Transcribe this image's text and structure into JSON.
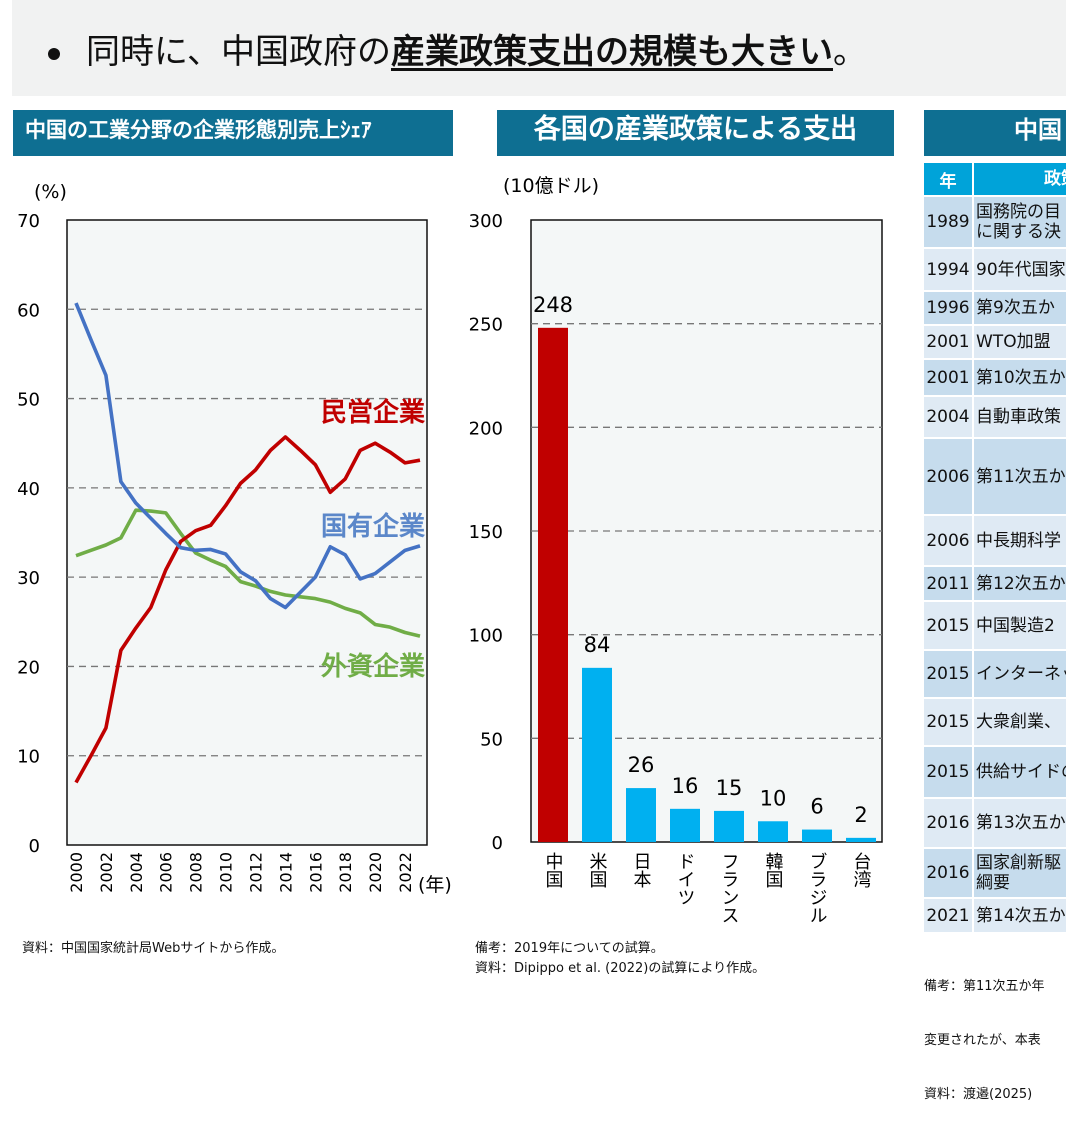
{
  "bullet": {
    "text_plain": "同時に、中国政府の",
    "text_bold": "産業政策支出の規模も大きい",
    "text_end": "。"
  },
  "colors": {
    "header_bg": "#0e6f92",
    "red": "#c00000",
    "blue": "#4472c4",
    "green": "#70ad47",
    "bar_other": "#00b0f0",
    "table_header": "#00a3d9",
    "row_dark": "#c6dced",
    "row_light": "#dfeaf4"
  },
  "panel1": {
    "title": "中国の工業分野の企業形態別売上ｼｪｱ",
    "note": "資料：中国国家統計局Webサイトから作成。"
  },
  "panel2": {
    "title": "各国の産業政策による支出",
    "note1": "備考：2019年についての試算。",
    "note2": "資料：Dipippo et al. (2022)の試算により作成。"
  },
  "panel3": {
    "title": "中国",
    "header": {
      "year": "年",
      "policy": "政策"
    },
    "rows": [
      {
        "year": "1989",
        "policy": "国務院の目\nに関する決"
      },
      {
        "year": "1994",
        "policy": "90年代国家"
      },
      {
        "year": "1996",
        "policy": "第9次五か"
      },
      {
        "year": "2001",
        "policy": "WTO加盟"
      },
      {
        "year": "2001",
        "policy": "第10次五か"
      },
      {
        "year": "2004",
        "policy": "自動車政策"
      },
      {
        "year": "2006",
        "policy": "第11次五か"
      },
      {
        "year": "2006",
        "policy": "中長期科学"
      },
      {
        "year": "2011",
        "policy": "第12次五か"
      },
      {
        "year": "2015",
        "policy": "中国製造2"
      },
      {
        "year": "2015",
        "policy": "インターネッ"
      },
      {
        "year": "2015",
        "policy": "大衆創業、"
      },
      {
        "year": "2015",
        "policy": "供給サイドの"
      },
      {
        "year": "2016",
        "policy": "第13次五か"
      },
      {
        "year": "2016",
        "policy": "国家創新駆\n綱要"
      },
      {
        "year": "2021",
        "policy": "第14次五か"
      }
    ],
    "notes": [
      "備考：第11次五か年",
      "変更されたが、本表",
      "資料：渡邉(2025)"
    ]
  },
  "chart_data": [
    {
      "type": "line",
      "ylabel": "(%)",
      "xlabel": "(年)",
      "ylim": [
        0,
        70
      ],
      "xlim": [
        2000,
        2023
      ],
      "yticks": [
        "0",
        "10",
        "20",
        "30",
        "40",
        "50",
        "60",
        "70"
      ],
      "xticks": [
        "2000",
        "2002",
        "2004",
        "2006",
        "2008",
        "2010",
        "2012",
        "2014",
        "2016",
        "2018",
        "2020",
        "2022"
      ],
      "grid": "horizontal dashed",
      "x": [
        2000,
        2001,
        2002,
        2003,
        2004,
        2005,
        2006,
        2007,
        2008,
        2009,
        2010,
        2011,
        2012,
        2013,
        2014,
        2015,
        2016,
        2017,
        2018,
        2019,
        2020,
        2021,
        2022,
        2023
      ],
      "series": [
        {
          "name": "民営企業",
          "color": "#c00000",
          "values": [
            7.0,
            10.0,
            13.1,
            21.8,
            24.3,
            26.6,
            30.8,
            34.0,
            35.2,
            35.8,
            38.0,
            40.5,
            42.0,
            44.2,
            45.7,
            44.2,
            42.6,
            39.5,
            41.0,
            44.2,
            45.0,
            44.0,
            42.8,
            43.1
          ]
        },
        {
          "name": "国有企業",
          "color": "#4472c4",
          "values": [
            60.7,
            56.6,
            52.6,
            40.7,
            38.3,
            36.6,
            34.9,
            33.3,
            33.0,
            33.1,
            32.6,
            30.6,
            29.6,
            27.6,
            26.6,
            28.3,
            30.0,
            33.4,
            32.5,
            29.8,
            30.4,
            31.7,
            33.0,
            33.5
          ]
        },
        {
          "name": "外資企業",
          "color": "#70ad47",
          "values": [
            32.4,
            33.0,
            33.6,
            34.4,
            37.5,
            37.4,
            37.2,
            34.9,
            32.7,
            31.9,
            31.2,
            29.5,
            29.0,
            28.4,
            28.0,
            27.8,
            27.6,
            27.2,
            26.5,
            26.0,
            24.7,
            24.4,
            23.8,
            23.4
          ]
        }
      ]
    },
    {
      "type": "bar",
      "ylabel": "(10億ドル)",
      "ylim": [
        0,
        300
      ],
      "yticks": [
        "0",
        "50",
        "100",
        "150",
        "200",
        "250",
        "300"
      ],
      "grid": "horizontal dashed",
      "categories": [
        "中国",
        "米国",
        "日本",
        "ドイツ",
        "フランス",
        "韓国",
        "ブラジル",
        "台湾"
      ],
      "values": [
        248,
        84,
        26,
        16,
        15,
        10,
        6,
        2
      ],
      "value_labels": [
        "248",
        "84",
        "26",
        "16",
        "15",
        "10",
        "6",
        "2"
      ],
      "bar_colors": [
        "#c00000",
        "#00b0f0",
        "#00b0f0",
        "#00b0f0",
        "#00b0f0",
        "#00b0f0",
        "#00b0f0",
        "#00b0f0"
      ]
    }
  ]
}
